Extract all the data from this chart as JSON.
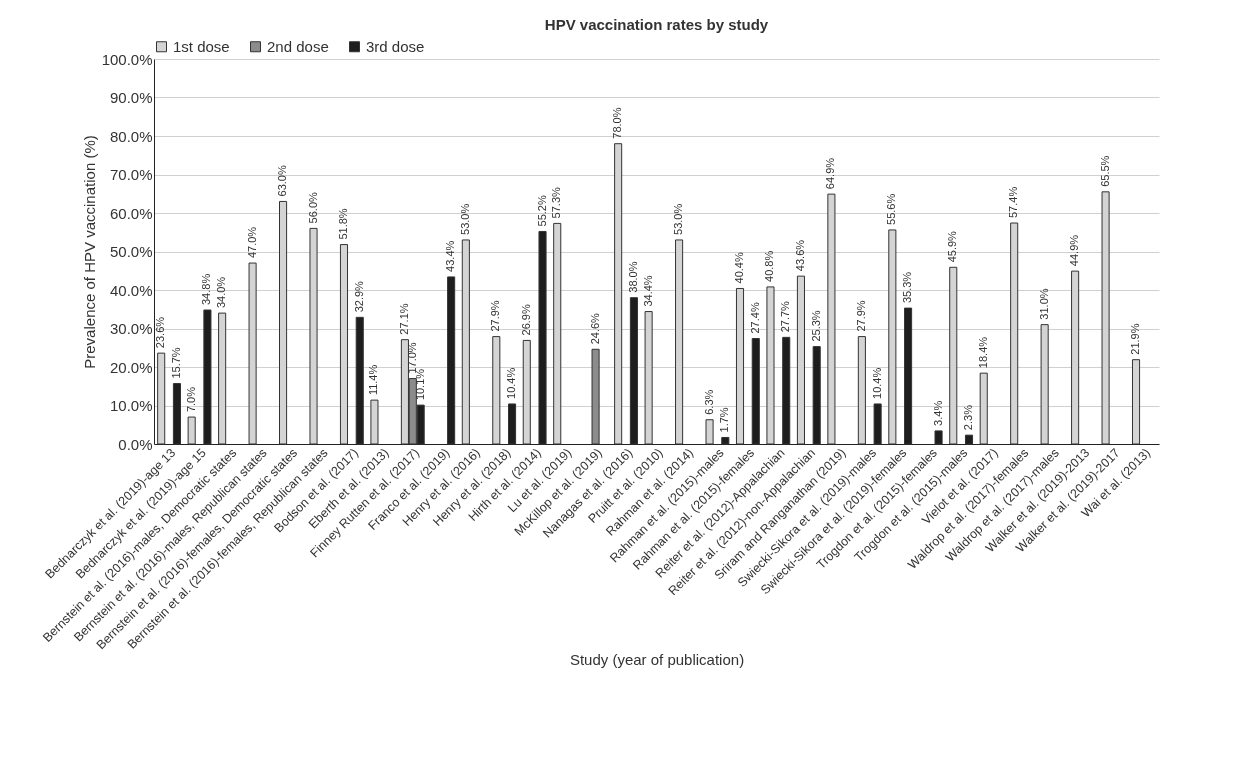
{
  "chart_data": {
    "type": "bar",
    "title": "HPV vaccination rates by study",
    "xlabel": "Study (year of publication)",
    "ylabel": "Prevalence of HPV vaccination (%)",
    "categories": [
      "Bednarczyk et al. (2019)-age 13",
      "Bednarczyk et al. (2019)-age 15",
      "Bernstein et al. (2016)-males, Democratic states",
      "Bernstein et al. (2016)-males, Republican states",
      "Bernstein et al. (2016)-females, Democratic states",
      "Bernstein et al. (2016)-females, Republican states",
      "Bodson et al. (2017)",
      "Eberth et al. (2013)",
      "Finney Rutten et al. (2017)",
      "Franco et al. (2019)",
      "Henry et al. (2016)",
      "Henry et al. (2018)",
      "Hirth et al. (2014)",
      "Lu et al. (2019)",
      "McKillop et al. (2019)",
      "Nanagas et al. (2016)",
      "Pruitt et al. (2010)",
      "Rahman et al. (2014)",
      "Rahman et al. (2015)-males",
      "Rahman et al. (2015)-females",
      "Reiter et al. (2012)-Appalachian",
      "Reiter et al. (2012)-non-Appalachian",
      "Sriram and Ranganathan (2019)",
      "Swiecki-Sikora et al. (2019)-males",
      "Swiecki-Sikora et al. (2019)-females",
      "Trogdon et al. (2015)-females",
      "Trogdon et al. (2015)-males",
      "Vielot et al. (2017)",
      "Waldrop et al. (2017)-females",
      "Waldrop et al. (2017)-males",
      "Walker et al. (2019)-2013",
      "Walker et al. (2019)-2017",
      "Wai et al. (2013)"
    ],
    "series": [
      {
        "name": "1st dose",
        "color": "#d4d4d4",
        "values": [
          23.6,
          7.0,
          34.0,
          47.0,
          63.0,
          56.0,
          51.8,
          11.4,
          27.1,
          null,
          53.0,
          27.9,
          26.9,
          57.3,
          null,
          78.0,
          34.4,
          53.0,
          6.3,
          40.4,
          40.8,
          43.6,
          64.9,
          27.9,
          55.6,
          null,
          45.9,
          18.4,
          57.4,
          31.0,
          44.9,
          65.5,
          21.9
        ],
        "value_labels": [
          "23.6%",
          "7.0%",
          "34.0%",
          "47.0%",
          "63.0%",
          "56.0%",
          "51.8%",
          "11.4%",
          "27.1%",
          null,
          "53.0%",
          "27.9%",
          "26.9%",
          "57.3%",
          null,
          "78.0%",
          "34.4%",
          "53.0%",
          "6.3%",
          "40.4%",
          "40.8%",
          "43.6%",
          "64.9%",
          "27.9%",
          "55.6%",
          null,
          "45.9%",
          "18.4%",
          "57.4%",
          "31.0%",
          "44.9%",
          "65.5%",
          "21.9%"
        ]
      },
      {
        "name": "2nd dose",
        "color": "#8c8c8c",
        "values": [
          null,
          null,
          null,
          null,
          null,
          null,
          null,
          null,
          17.0,
          null,
          null,
          null,
          null,
          null,
          24.6,
          null,
          null,
          null,
          null,
          null,
          null,
          null,
          null,
          null,
          null,
          null,
          null,
          null,
          null,
          null,
          null,
          null,
          null
        ],
        "value_labels": [
          null,
          null,
          null,
          null,
          null,
          null,
          null,
          null,
          "17.0%",
          null,
          null,
          null,
          null,
          null,
          "24.6%",
          null,
          null,
          null,
          null,
          null,
          null,
          null,
          null,
          null,
          null,
          null,
          null,
          null,
          null,
          null,
          null,
          null,
          null
        ]
      },
      {
        "name": "3rd dose",
        "color": "#1e1e1e",
        "values": [
          15.7,
          34.8,
          null,
          null,
          null,
          null,
          32.9,
          null,
          10.1,
          43.4,
          null,
          10.4,
          55.2,
          null,
          null,
          38.0,
          null,
          null,
          1.7,
          27.4,
          27.7,
          25.3,
          null,
          10.4,
          35.3,
          3.4,
          2.3,
          null,
          null,
          null,
          null,
          null,
          null
        ],
        "value_labels": [
          "15.7%",
          "34.8%",
          null,
          null,
          null,
          null,
          "32.9%",
          null,
          "10.1%",
          "43.4%",
          null,
          "10.4%",
          "55.2%",
          null,
          null,
          "38.0%",
          null,
          null,
          "1.7%",
          "27.4%",
          "27.7%",
          "25.3%",
          null,
          "10.4%",
          "35.3%",
          "3.4%",
          "2.3%",
          null,
          null,
          null,
          null,
          null,
          null
        ]
      }
    ],
    "ylim": [
      0,
      100
    ],
    "yticks": [
      {
        "value": 0,
        "label": "0.0%"
      },
      {
        "value": 10,
        "label": "10.0%"
      },
      {
        "value": 20,
        "label": "20.0%"
      },
      {
        "value": 30,
        "label": "30.0%"
      },
      {
        "value": 40,
        "label": "40.0%"
      },
      {
        "value": 50,
        "label": "50.0%"
      },
      {
        "value": 60,
        "label": "60.0%"
      },
      {
        "value": 70,
        "label": "70.0%"
      },
      {
        "value": 80,
        "label": "80.0%"
      },
      {
        "value": 90,
        "label": "90.0%"
      },
      {
        "value": 100,
        "label": "100.0%"
      }
    ],
    "grid": "y",
    "legend": "top"
  }
}
